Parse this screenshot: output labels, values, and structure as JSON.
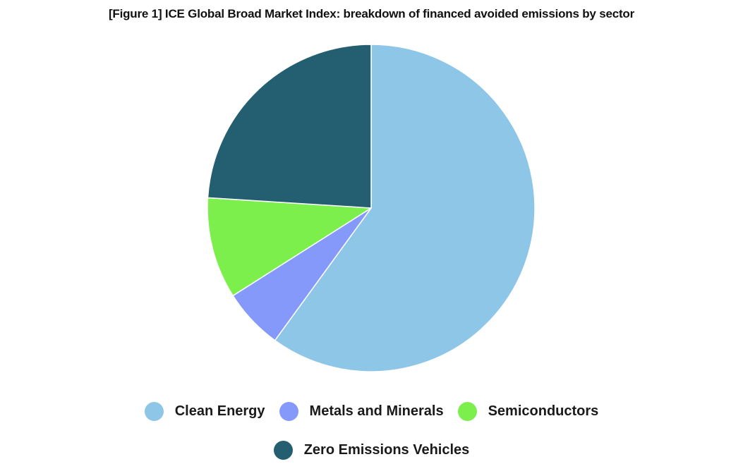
{
  "chart_data": {
    "type": "pie",
    "title": "[Figure 1] ICE Global Broad Market Index: breakdown of financed avoided emissions by sector",
    "unit": "%",
    "categories": [
      "Clean Energy",
      "Metals and Minerals",
      "Semiconductors",
      "Zero Emissions Vehicles"
    ],
    "values": [
      60,
      6,
      10,
      24
    ],
    "colors": [
      "#8ec6e8",
      "#8599fb",
      "#7def4d",
      "#235f70"
    ],
    "legend_position": "bottom",
    "start_angle": "12 o'clock",
    "direction": "clockwise"
  }
}
